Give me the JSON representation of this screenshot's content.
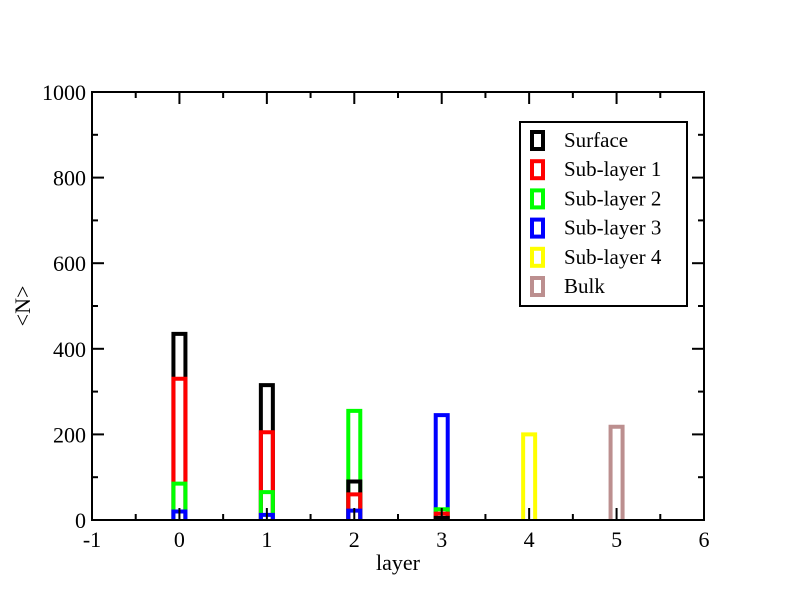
{
  "chart_data": {
    "type": "bar",
    "title": "",
    "xlabel": "layer",
    "ylabel": "<N>",
    "xlim": [
      -1,
      6
    ],
    "ylim": [
      0,
      1000
    ],
    "xticks": [
      "-1",
      "0",
      "1",
      "2",
      "3",
      "4",
      "5",
      "6"
    ],
    "yticks": [
      "0",
      "200",
      "400",
      "600",
      "800",
      "1000"
    ],
    "grid": false,
    "legend_position": "top-right",
    "x": [
      0,
      1,
      2,
      3,
      4,
      5
    ],
    "series": [
      {
        "name": "Surface",
        "color": "#000000",
        "values": [
          435,
          315,
          90,
          5,
          0,
          0
        ]
      },
      {
        "name": "Sub-layer 1",
        "color": "#ff0000",
        "values": [
          330,
          205,
          60,
          15,
          0,
          0
        ]
      },
      {
        "name": "Sub-layer 2",
        "color": "#00ff00",
        "values": [
          85,
          65,
          255,
          25,
          0,
          0
        ]
      },
      {
        "name": "Sub-layer 3",
        "color": "#0000ff",
        "values": [
          20,
          12,
          22,
          245,
          0,
          0
        ]
      },
      {
        "name": "Sub-layer 4",
        "color": "#ffff00",
        "values": [
          0,
          0,
          0,
          0,
          200,
          0
        ]
      },
      {
        "name": "Bulk",
        "color": "#bc8f8f",
        "values": [
          0,
          0,
          0,
          0,
          0,
          218
        ]
      }
    ]
  }
}
